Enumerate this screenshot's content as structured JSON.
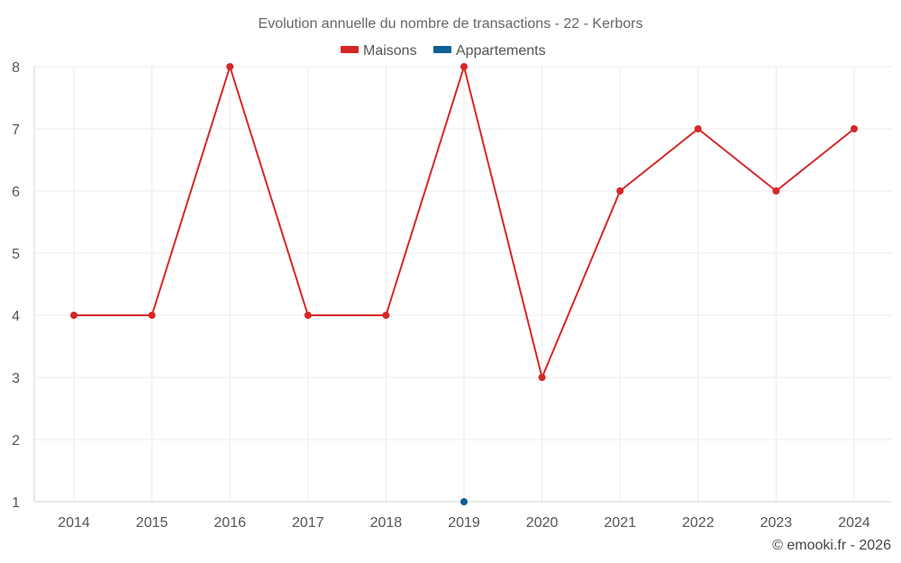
{
  "colors": {
    "maisons": "#d62728",
    "appartements": "#0f5f94",
    "background": "#ffffff"
  },
  "chart_data": {
    "type": "line",
    "title": "Evolution annuelle du nombre de transactions - 22 - Kerbors",
    "xlabel": "",
    "ylabel": "",
    "categories": [
      "2014",
      "2015",
      "2016",
      "2017",
      "2018",
      "2019",
      "2020",
      "2021",
      "2022",
      "2023",
      "2024"
    ],
    "y_ticks": [
      "1",
      "2",
      "3",
      "4",
      "5",
      "6",
      "7",
      "8"
    ],
    "ylim": [
      1,
      8
    ],
    "grid": true,
    "legend_position": "top-center",
    "series": [
      {
        "name": "Maisons",
        "color": "#d62728",
        "values": [
          4,
          4,
          8,
          4,
          4,
          8,
          3,
          6,
          7,
          6,
          7
        ]
      },
      {
        "name": "Appartements",
        "color": "#0f5f94",
        "values": [
          null,
          null,
          null,
          null,
          null,
          1,
          null,
          null,
          null,
          null,
          null
        ]
      }
    ]
  },
  "credit": "© emooki.fr - 2026"
}
